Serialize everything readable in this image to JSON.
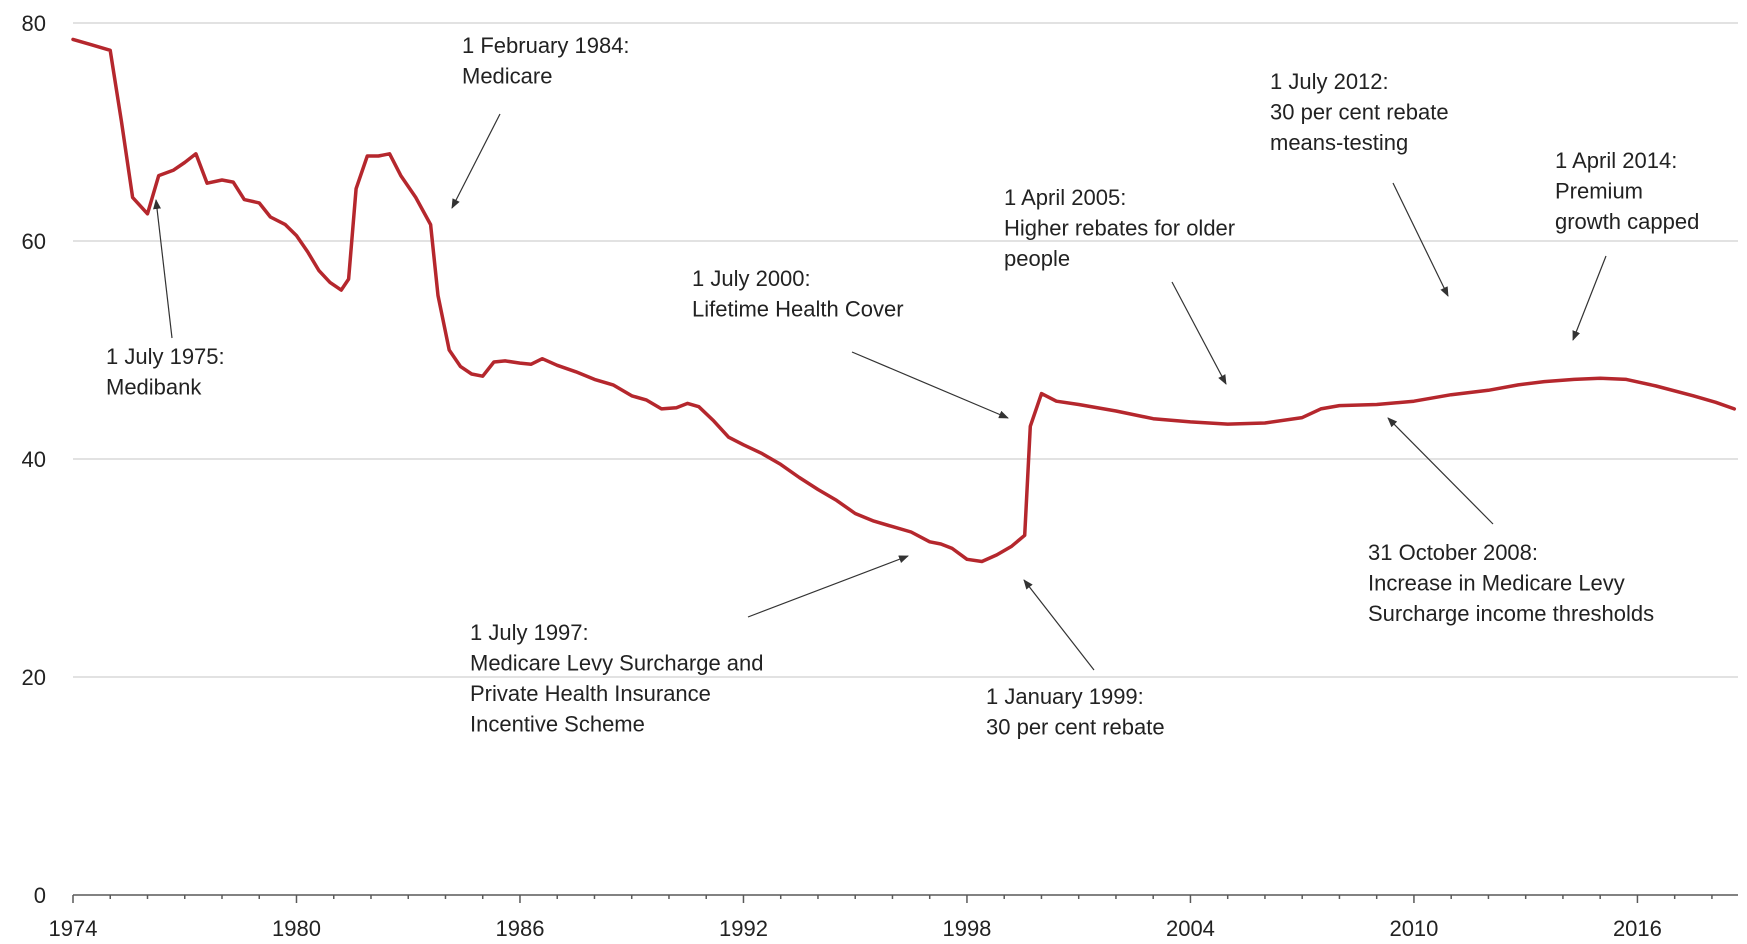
{
  "chart_data": {
    "type": "line",
    "title": "",
    "xlabel": "",
    "ylabel": "",
    "xlim": [
      1974,
      2018.7
    ],
    "ylim": [
      0,
      80
    ],
    "x_ticks": [
      "1974",
      "1980",
      "1986",
      "1992",
      "1998",
      "2004",
      "2010",
      "2016"
    ],
    "y_ticks": [
      "0",
      "20",
      "40",
      "60",
      "80"
    ],
    "grid": true,
    "series": [
      {
        "color": "#b5272d",
        "x": [
          1974.0,
          1974.5,
          1975.0,
          1975.3,
          1975.6,
          1976.0,
          1976.3,
          1976.7,
          1977.0,
          1977.3,
          1977.6,
          1978.0,
          1978.3,
          1978.6,
          1979.0,
          1979.3,
          1979.7,
          1980.0,
          1980.3,
          1980.6,
          1980.9,
          1981.2,
          1981.4,
          1981.6,
          1981.9,
          1982.2,
          1982.5,
          1982.8,
          1983.2,
          1983.6,
          1983.8,
          1984.1,
          1984.4,
          1984.7,
          1985.0,
          1985.3,
          1985.6,
          1986.0,
          1986.3,
          1986.6,
          1987.0,
          1987.5,
          1988.0,
          1988.5,
          1989.0,
          1989.4,
          1989.8,
          1990.2,
          1990.5,
          1990.8,
          1991.2,
          1991.6,
          1992.0,
          1992.5,
          1993.0,
          1993.5,
          1994.0,
          1994.5,
          1995.0,
          1995.5,
          1996.0,
          1996.5,
          1997.0,
          1997.3,
          1997.6,
          1998.0,
          1998.4,
          1998.8,
          1999.2,
          1999.55,
          1999.7,
          2000.0,
          2000.4,
          2001.0,
          2002.0,
          2003.0,
          2004.0,
          2005.0,
          2006.0,
          2007.0,
          2007.5,
          2008.0,
          2009.0,
          2010.0,
          2011.0,
          2012.0,
          2012.8,
          2013.5,
          2014.3,
          2015.0,
          2015.7,
          2016.5,
          2017.5,
          2018.1,
          2018.6
        ],
        "values": [
          78.5,
          78.0,
          77.5,
          71,
          64,
          62.5,
          66.0,
          66.5,
          67.2,
          68.0,
          65.3,
          65.6,
          65.4,
          63.8,
          63.5,
          62.2,
          61.5,
          60.5,
          59.0,
          57.3,
          56.2,
          55.5,
          56.5,
          64.8,
          67.8,
          67.8,
          68.0,
          66.0,
          64.0,
          61.5,
          55,
          50.0,
          48.5,
          47.8,
          47.6,
          48.9,
          49.0,
          48.8,
          48.7,
          49.2,
          48.6,
          48.0,
          47.3,
          46.8,
          45.8,
          45.4,
          44.6,
          44.7,
          45.1,
          44.8,
          43.5,
          42.0,
          41.3,
          40.5,
          39.5,
          38.3,
          37.2,
          36.2,
          35.0,
          34.3,
          33.8,
          33.3,
          32.4,
          32.2,
          31.8,
          30.8,
          30.6,
          31.2,
          32.0,
          33.0,
          43.0,
          46.0,
          45.3,
          45.0,
          44.4,
          43.7,
          43.4,
          43.2,
          43.3,
          43.8,
          44.6,
          44.9,
          45.0,
          45.3,
          45.9,
          46.3,
          46.8,
          47.1,
          47.3,
          47.4,
          47.3,
          46.7,
          45.8,
          45.2,
          44.6
        ]
      }
    ],
    "annotations": [
      {
        "lines": [
          "1 July 1975:",
          "Medibank"
        ]
      },
      {
        "lines": [
          "1 February 1984:",
          "Medicare"
        ]
      },
      {
        "lines": [
          "1 July 1997:",
          "Medicare Levy Surcharge and",
          "Private Health Insurance",
          "Incentive Scheme"
        ]
      },
      {
        "lines": [
          "1 January 1999:",
          "30 per cent rebate"
        ]
      },
      {
        "lines": [
          "1 July 2000:",
          "Lifetime Health Cover"
        ]
      },
      {
        "lines": [
          "1 April 2005:",
          "Higher rebates for older",
          "people"
        ]
      },
      {
        "lines": [
          "31 October 2008:",
          "Increase in Medicare Levy",
          "Surcharge income thresholds"
        ]
      },
      {
        "lines": [
          "1 July 2012:",
          "30 per cent rebate",
          "means-testing"
        ]
      },
      {
        "lines": [
          "1 April 2014:",
          "Premium",
          "growth capped"
        ]
      }
    ]
  }
}
